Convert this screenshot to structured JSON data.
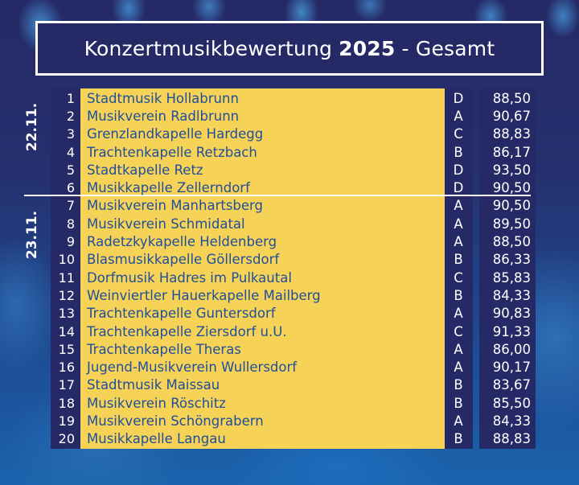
{
  "header": {
    "title_prefix": "Konzertmusikbewertung",
    "year": "2025",
    "title_suffix": "- Gesamt"
  },
  "dates": [
    "22.11.",
    "23.11."
  ],
  "colors": {
    "navy": "#252a66",
    "yellow": "#f6d257",
    "name_text": "#1f4e9c",
    "white": "#ffffff"
  },
  "rows": [
    {
      "rank": "1",
      "name": "Stadtmusik Hollabrunn",
      "class": "D",
      "score": "88,50"
    },
    {
      "rank": "2",
      "name": "Musikverein Radlbrunn",
      "class": "A",
      "score": "90,67"
    },
    {
      "rank": "3",
      "name": "Grenzlandkapelle Hardegg",
      "class": "C",
      "score": "88,83"
    },
    {
      "rank": "4",
      "name": "Trachtenkapelle Retzbach",
      "class": "B",
      "score": "86,17"
    },
    {
      "rank": "5",
      "name": "Stadtkapelle Retz",
      "class": "D",
      "score": "93,50"
    },
    {
      "rank": "6",
      "name": "Musikkapelle Zellerndorf",
      "class": "D",
      "score": "90,50"
    },
    {
      "rank": "7",
      "name": "Musikverein Manhartsberg",
      "class": "A",
      "score": "90,50"
    },
    {
      "rank": "8",
      "name": "Musikverein Schmidatal",
      "class": "A",
      "score": "89,50"
    },
    {
      "rank": "9",
      "name": "Radetzkykapelle Heldenberg",
      "class": "A",
      "score": "88,50"
    },
    {
      "rank": "10",
      "name": "Blasmusikkapelle Göllersdorf",
      "class": "B",
      "score": "86,33"
    },
    {
      "rank": "11",
      "name": "Dorfmusik Hadres im Pulkautal",
      "class": "C",
      "score": "85,83"
    },
    {
      "rank": "12",
      "name": "Weinviertler Hauerkapelle Mailberg",
      "class": "B",
      "score": "84,33"
    },
    {
      "rank": "13",
      "name": "Trachtenkapelle Guntersdorf",
      "class": "A",
      "score": "90,83"
    },
    {
      "rank": "14",
      "name": "Trachtenkapelle Ziersdorf u.U.",
      "class": "C",
      "score": "91,33"
    },
    {
      "rank": "15",
      "name": "Trachtenkapelle Theras",
      "class": "A",
      "score": "86,00"
    },
    {
      "rank": "16",
      "name": "Jugend-Musikverein Wullersdorf",
      "class": "A",
      "score": "90,17"
    },
    {
      "rank": "17",
      "name": "Stadtmusik Maissau",
      "class": "B",
      "score": "83,67"
    },
    {
      "rank": "18",
      "name": "Musikverein Röschitz",
      "class": "B",
      "score": "85,50"
    },
    {
      "rank": "19",
      "name": "Musikverein Schöngrabern",
      "class": "A",
      "score": "84,33"
    },
    {
      "rank": "20",
      "name": "Musikkapelle Langau",
      "class": "B",
      "score": "88,83"
    }
  ]
}
